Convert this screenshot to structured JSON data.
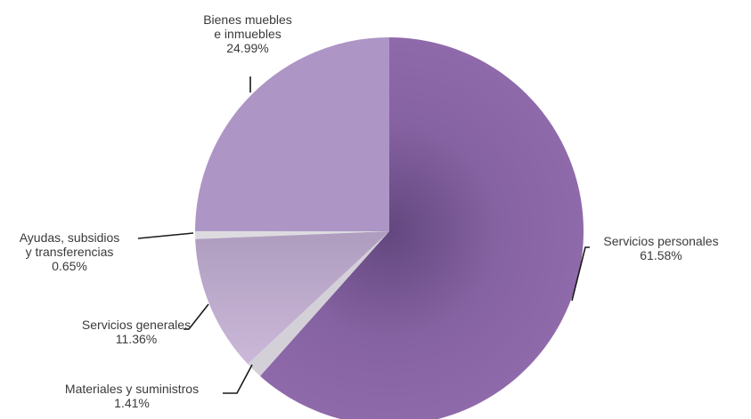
{
  "chart_data": {
    "type": "pie",
    "title": "",
    "series": [
      {
        "categories": [
          "Servicios personales",
          "Materiales y suministros",
          "Servicios generales",
          "Ayudas, subsidios y transferencias",
          "Bienes muebles e inmuebles"
        ],
        "values": [
          61.58,
          1.41,
          11.36,
          0.65,
          24.99
        ]
      }
    ],
    "unit": "%",
    "slices": [
      {
        "label_lines": [
          "Servicios personales"
        ],
        "value_text": "61.58%",
        "value": 61.58,
        "color": "#8f6aab"
      },
      {
        "label_lines": [
          "Materiales y suministros"
        ],
        "value_text": "1.41%",
        "value": 1.41,
        "color": "#d4d0d8"
      },
      {
        "label_lines": [
          "Servicios generales"
        ],
        "value_text": "11.36%",
        "value": 11.36,
        "color": "#cbb8d9"
      },
      {
        "label_lines": [
          "Ayudas, subsidios",
          "y transferencias"
        ],
        "value_text": "0.65%",
        "value": 0.65,
        "color": "#dddbe0"
      },
      {
        "label_lines": [
          "Bienes muebles",
          "e inmuebles"
        ],
        "value_text": "24.99%",
        "value": 24.99,
        "color": "#ad95c5"
      }
    ]
  }
}
